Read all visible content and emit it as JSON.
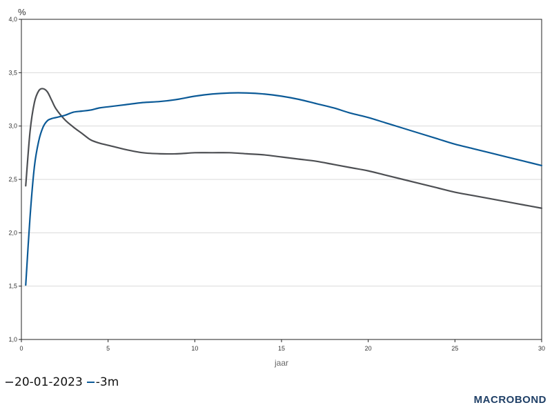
{
  "chart_data": {
    "type": "line",
    "y_unit_label": "%",
    "xlabel": "jaar",
    "xlim": [
      0,
      30
    ],
    "ylim": [
      1.0,
      4.0
    ],
    "x_ticks": [
      0,
      5,
      10,
      15,
      20,
      25,
      30
    ],
    "y_ticks": [
      "1,0",
      "1,5",
      "2,0",
      "2,5",
      "3,0",
      "3,5",
      "4,0"
    ],
    "grid": "horizontal",
    "legend_position": "bottom-left",
    "series": [
      {
        "name": "20-01-2023",
        "color": "#4d4f53",
        "x": [
          0.25,
          0.5,
          0.75,
          1,
          1.25,
          1.5,
          1.75,
          2,
          2.5,
          3,
          3.5,
          4,
          4.5,
          5,
          6,
          7,
          8,
          9,
          10,
          11,
          12,
          13,
          14,
          15,
          16,
          17,
          18,
          19,
          20,
          21,
          22,
          23,
          24,
          25,
          26,
          27,
          28,
          29,
          30
        ],
        "values": [
          2.44,
          2.95,
          3.22,
          3.33,
          3.35,
          3.32,
          3.24,
          3.16,
          3.06,
          2.99,
          2.93,
          2.87,
          2.84,
          2.82,
          2.78,
          2.75,
          2.74,
          2.74,
          2.75,
          2.75,
          2.75,
          2.74,
          2.73,
          2.71,
          2.69,
          2.67,
          2.64,
          2.61,
          2.58,
          2.54,
          2.5,
          2.46,
          2.42,
          2.38,
          2.35,
          2.32,
          2.29,
          2.26,
          2.23
        ]
      },
      {
        "name": "-3m",
        "color": "#0b5a97",
        "x": [
          0.25,
          0.5,
          0.75,
          1,
          1.25,
          1.5,
          1.75,
          2,
          2.5,
          3,
          3.5,
          4,
          4.5,
          5,
          6,
          7,
          8,
          9,
          10,
          11,
          12,
          13,
          14,
          15,
          16,
          17,
          18,
          19,
          20,
          21,
          22,
          23,
          24,
          25,
          26,
          27,
          28,
          29,
          30
        ],
        "values": [
          1.51,
          2.15,
          2.62,
          2.86,
          2.99,
          3.05,
          3.07,
          3.08,
          3.1,
          3.13,
          3.14,
          3.15,
          3.17,
          3.18,
          3.2,
          3.22,
          3.23,
          3.25,
          3.28,
          3.3,
          3.31,
          3.31,
          3.3,
          3.28,
          3.25,
          3.21,
          3.17,
          3.12,
          3.08,
          3.03,
          2.98,
          2.93,
          2.88,
          2.83,
          2.79,
          2.75,
          2.71,
          2.67,
          2.63
        ]
      }
    ]
  },
  "legend": {
    "items": [
      {
        "label": "20-01-2023",
        "color": "#4d4f53"
      },
      {
        "label": "-3m",
        "color": "#0b5a97"
      }
    ]
  },
  "brand": {
    "logo_text": "MACROBOND",
    "color": "#1f3f66"
  }
}
